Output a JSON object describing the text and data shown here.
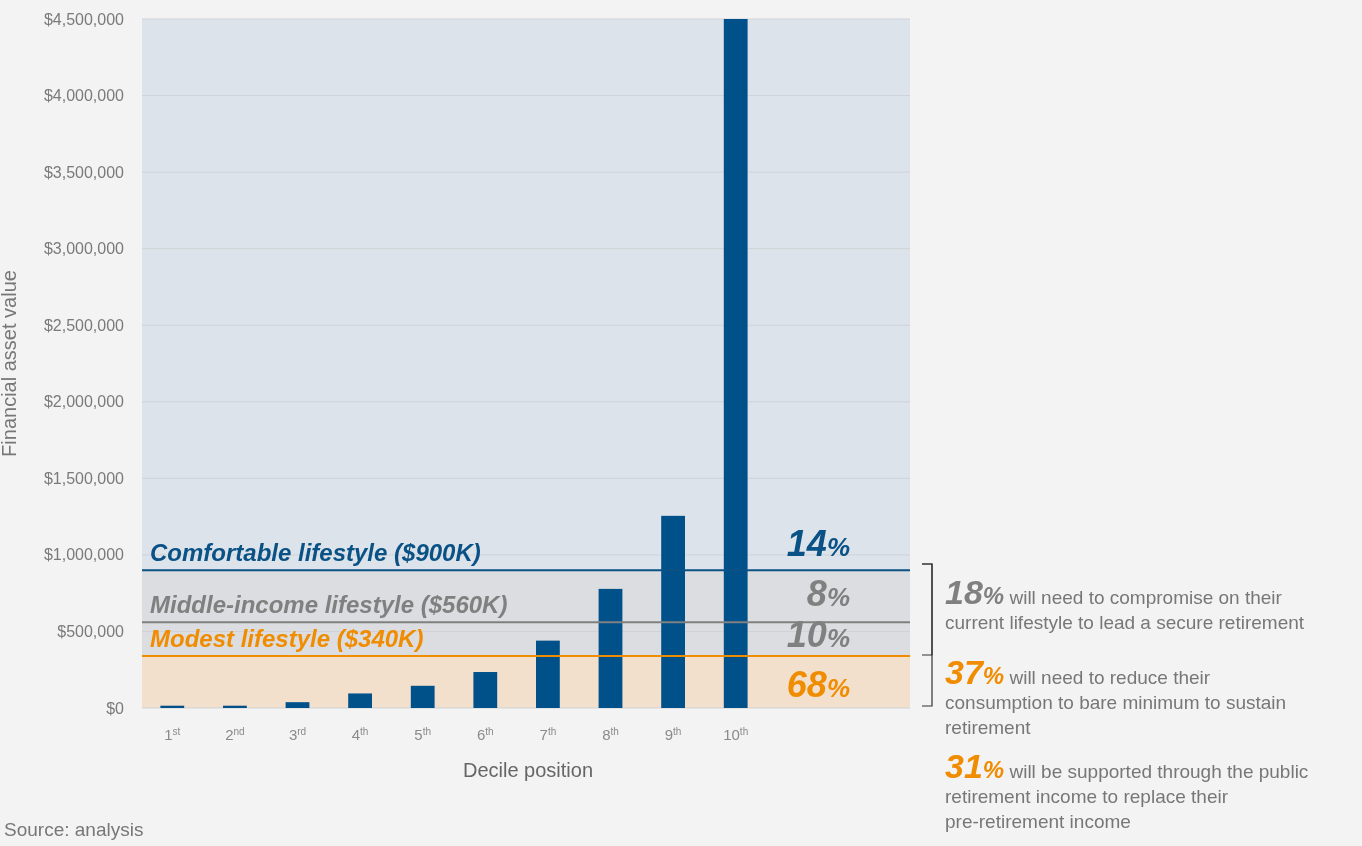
{
  "chart_data": {
    "type": "bar",
    "categories": [
      "1$^{st}$",
      "2$^{nd}$",
      "3$^{rd}$",
      "4$^{th}$",
      "5$^{th}$",
      "6$^{th}$",
      "7$^{th}$",
      "8$^{th}$",
      "9$^{th}$",
      "10$^{th}$"
    ],
    "values": [
      15000,
      15000,
      38000,
      95000,
      145000,
      235000,
      440000,
      778000,
      1255000,
      4500000
    ],
    "color": "#00508a",
    "xlabel": "Decile position",
    "ylabel": "Financial asset value",
    "ylim": [
      0,
      4500000
    ],
    "yticks": [
      {
        "value": 0,
        "label": "$0"
      },
      {
        "value": 500000,
        "label": "$500,000"
      },
      {
        "value": 1000000,
        "label": "$1,000,000"
      },
      {
        "value": 1500000,
        "label": "$1,500,000"
      },
      {
        "value": 2000000,
        "label": "$2,000,000"
      },
      {
        "value": 2500000,
        "label": "$2,500,000"
      },
      {
        "value": 3000000,
        "label": "$3,000,000"
      },
      {
        "value": 3500000,
        "label": "$3,500,000"
      },
      {
        "value": 4000000,
        "label": "$4,000,000"
      },
      {
        "value": 4500000,
        "label": "$4,500,000"
      }
    ],
    "grid": "y",
    "bands": [
      {
        "axis": "y",
        "from": 0,
        "to": 340000,
        "color": "#f2dfcc"
      },
      {
        "axis": "y",
        "from": 340000,
        "to": 900000,
        "color": "#dcdde0"
      },
      {
        "axis": "y",
        "from": 900000,
        "to": 4500000,
        "color": "#dde3ea"
      }
    ],
    "ref_lines": [
      {
        "axis": "y",
        "value": 900000,
        "label": "Comfortable lifestyle ($900K)",
        "color": "#0a5285"
      },
      {
        "axis": "y",
        "value": 560000,
        "label": "Middle-income lifestyle ($560K)",
        "color": "#808080"
      },
      {
        "axis": "y",
        "value": 340000,
        "label": "Modest lifestyle ($340K)",
        "color": "#f08c00"
      }
    ],
    "annotations": [
      "14%",
      "8%",
      "10%",
      "68%",
      "18% will need to compromise on their current lifestyle to lead a secure retirement",
      "37% will need to reduce their consumption to bare minimum to sustain retirement",
      "31% will be supported through the public retirement income to replace their pre-retirement income",
      "Source: analysis"
    ]
  }
}
